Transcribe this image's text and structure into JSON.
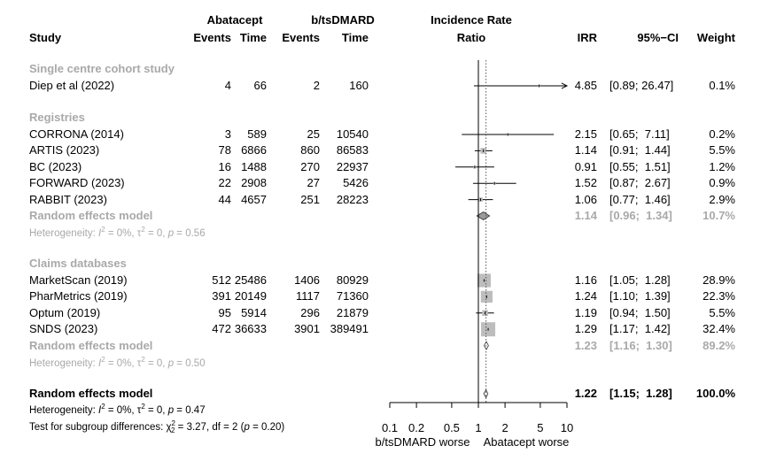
{
  "header": {
    "study": "Study",
    "group1_name": "Abatacept",
    "group2_name": "b/tsDMARD",
    "events": "Events",
    "time": "Time",
    "irr_title_1": "Incidence Rate",
    "irr_title_2": "Ratio",
    "irr": "IRR",
    "ci": "95%−CI",
    "weight": "Weight"
  },
  "groups": [
    {
      "title": "Single centre cohort study",
      "studies": [
        {
          "name": "Diep et al (2022)",
          "e1": "4",
          "t1": "66",
          "e2": "2",
          "t2": "160",
          "irr": "4.85",
          "ci": "[0.89; 26.47]",
          "weight": "0.1%",
          "est": 4.85,
          "lo": 0.89,
          "hi": 26.47,
          "w": 0.1
        }
      ]
    },
    {
      "title": "Registries",
      "studies": [
        {
          "name": "CORRONA (2014)",
          "e1": "3",
          "t1": "589",
          "e2": "25",
          "t2": "10540",
          "irr": "2.15",
          "ci": "[0.65;  7.11]",
          "weight": "0.2%",
          "est": 2.15,
          "lo": 0.65,
          "hi": 7.11,
          "w": 0.2
        },
        {
          "name": "ARTIS (2023)",
          "e1": "78",
          "t1": "6866",
          "e2": "860",
          "t2": "86583",
          "irr": "1.14",
          "ci": "[0.91;  1.44]",
          "weight": "5.5%",
          "est": 1.14,
          "lo": 0.91,
          "hi": 1.44,
          "w": 5.5
        },
        {
          "name": "BC (2023)",
          "e1": "16",
          "t1": "1488",
          "e2": "270",
          "t2": "22937",
          "irr": "0.91",
          "ci": "[0.55;  1.51]",
          "weight": "1.2%",
          "est": 0.91,
          "lo": 0.55,
          "hi": 1.51,
          "w": 1.2
        },
        {
          "name": "FORWARD (2023)",
          "e1": "22",
          "t1": "2908",
          "e2": "27",
          "t2": "5426",
          "irr": "1.52",
          "ci": "[0.87;  2.67]",
          "weight": "0.9%",
          "est": 1.52,
          "lo": 0.87,
          "hi": 2.67,
          "w": 0.9
        },
        {
          "name": "RABBIT (2023)",
          "e1": "44",
          "t1": "4657",
          "e2": "251",
          "t2": "28223",
          "irr": "1.06",
          "ci": "[0.77;  1.46]",
          "weight": "2.9%",
          "est": 1.06,
          "lo": 0.77,
          "hi": 1.46,
          "w": 2.9
        }
      ],
      "pooled": {
        "label": "Random effects model",
        "irr": "1.14",
        "ci": "[0.96;  1.34]",
        "weight": "10.7%",
        "est": 1.14,
        "lo": 0.96,
        "hi": 1.34
      },
      "heterogeneity": {
        "i2": "0%",
        "tau2": "0",
        "p": "0.56"
      }
    },
    {
      "title": "Claims databases",
      "studies": [
        {
          "name": "MarketScan (2019)",
          "e1": "512",
          "t1": "25486",
          "e2": "1406",
          "t2": "80929",
          "irr": "1.16",
          "ci": "[1.05;  1.28]",
          "weight": "28.9%",
          "est": 1.16,
          "lo": 1.05,
          "hi": 1.28,
          "w": 28.9
        },
        {
          "name": "PharMetrics (2019)",
          "e1": "391",
          "t1": "20149",
          "e2": "1117",
          "t2": "71360",
          "irr": "1.24",
          "ci": "[1.10;  1.39]",
          "weight": "22.3%",
          "est": 1.24,
          "lo": 1.1,
          "hi": 1.39,
          "w": 22.3
        },
        {
          "name": "Optum (2019)",
          "e1": "95",
          "t1": "5914",
          "e2": "296",
          "t2": "21879",
          "irr": "1.19",
          "ci": "[0.94;  1.50]",
          "weight": "5.5%",
          "est": 1.19,
          "lo": 0.94,
          "hi": 1.5,
          "w": 5.5
        },
        {
          "name": "SNDS (2023)",
          "e1": "472",
          "t1": "36633",
          "e2": "3901",
          "t2": "389491",
          "irr": "1.29",
          "ci": "[1.17;  1.42]",
          "weight": "32.4%",
          "est": 1.29,
          "lo": 1.17,
          "hi": 1.42,
          "w": 32.4
        }
      ],
      "pooled": {
        "label": "Random effects model",
        "irr": "1.23",
        "ci": "[1.16;  1.30]",
        "weight": "89.2%",
        "est": 1.23,
        "lo": 1.16,
        "hi": 1.3
      },
      "heterogeneity": {
        "i2": "0%",
        "tau2": "0",
        "p": "0.50"
      }
    }
  ],
  "overall": {
    "label": "Random effects model",
    "irr": "1.22",
    "ci": "[1.15;  1.28]",
    "weight": "100.0%",
    "est": 1.22,
    "lo": 1.15,
    "hi": 1.28,
    "heterogeneity": {
      "i2": "0%",
      "tau2": "0",
      "p": "0.47"
    },
    "subgroup_test": {
      "prefix": "Test for subgroup differences: ",
      "chi2": "3.27",
      "df": "2",
      "p": "0.20"
    }
  },
  "chart_data": {
    "type": "forest",
    "scale": "log",
    "xlim": [
      0.1,
      10
    ],
    "ticks": [
      0.1,
      0.2,
      0.5,
      1,
      2,
      5,
      10
    ],
    "tick_labels": [
      "0.1",
      "0.2",
      "0.5",
      "1",
      "2",
      "5",
      "10"
    ],
    "null_value": 1,
    "overall_estimate": 1.22,
    "xlabel_left": "b/tsDMARD worse",
    "xlabel_right": "Abatacept worse"
  },
  "colors": {
    "grey": "#a9a9a9",
    "square_grey": "#bdbdbd",
    "diamond_grey": "#999999"
  }
}
